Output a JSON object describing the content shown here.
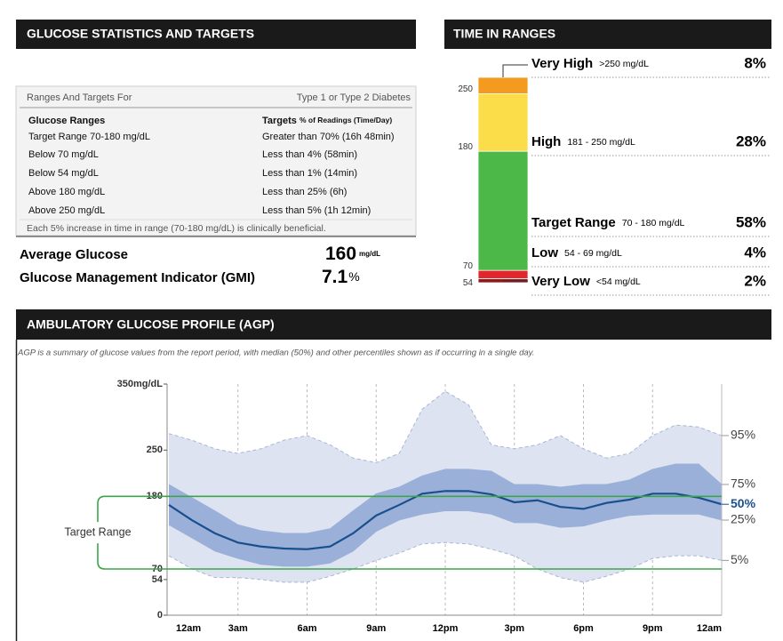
{
  "stats": {
    "title": "GLUCOSE STATISTICS AND TARGETS",
    "table": {
      "header": [
        "Ranges And Targets For",
        "Type 1 or Type 2 Diabetes"
      ],
      "columns": [
        "Glucose Ranges",
        "Targets",
        "% of Readings (Time/Day)"
      ],
      "rows": [
        [
          "Target Range 70-180 mg/dL",
          "Greater than 70% (16h 48min)"
        ],
        [
          "Below 70 mg/dL",
          "Less than 4% (58min)"
        ],
        [
          "Below 54 mg/dL",
          "Less than 1% (14min)"
        ],
        [
          "Above 180 mg/dL",
          "Less than 25% (6h)"
        ],
        [
          "Above 250 mg/dL",
          "Less than 5% (1h 12min)"
        ]
      ],
      "note": "Each 5% increase in time in range (70-180 mg/dL) is clinically beneficial."
    },
    "metrics": [
      {
        "label": "Average Glucose",
        "value": 160,
        "unit": "mg/dL"
      },
      {
        "label": "Glucose Management Indicator (GMI)",
        "value": 7.1,
        "unit": "%"
      }
    ]
  },
  "agp": {
    "title": "AMBULATORY GLUCOSE PROFILE (AGP)",
    "subtitle": "AGP is a summary of glucose values from the report period, with median (50%) and other percentiles shown as if occurring in a single day."
  },
  "chart_data": [
    {
      "type": "bar",
      "stacked": true,
      "title": "TIME IN RANGES",
      "series": [
        {
          "name": "Very High",
          "range": ">250 mg/dL",
          "values": [
            8
          ],
          "value_labels": [
            "8%"
          ],
          "color": "#f39a1f"
        },
        {
          "name": "High",
          "range": "181 - 250 mg/dL",
          "values": [
            28
          ],
          "value_labels": [
            "28%"
          ],
          "color": "#fbdd4a"
        },
        {
          "name": "Target Range",
          "range": "70 - 180 mg/dL",
          "values": [
            58
          ],
          "value_labels": [
            "58%"
          ],
          "color": "#4cb848"
        },
        {
          "name": "Low",
          "range": "54 - 69 mg/dL",
          "values": [
            4
          ],
          "value_labels": [
            "4%"
          ],
          "color": "#e3262b"
        },
        {
          "name": "Very Low",
          "range": "<54 mg/dL",
          "values": [
            2
          ],
          "value_labels": [
            "2%"
          ],
          "color": "#8b1c1c"
        }
      ],
      "boundary_labels": [
        250,
        180,
        70,
        54
      ]
    },
    {
      "type": "band",
      "x": [
        0,
        1,
        2,
        3,
        4,
        5,
        6,
        7,
        8,
        9,
        10,
        11,
        12,
        13,
        14,
        15,
        16,
        17,
        18,
        19,
        20,
        21,
        22,
        23,
        24
      ],
      "xlim": [
        0,
        24
      ],
      "xticks": [
        {
          "value": 0,
          "label": "12am"
        },
        {
          "value": 3,
          "label": "3am"
        },
        {
          "value": 6,
          "label": "6am"
        },
        {
          "value": 9,
          "label": "9am"
        },
        {
          "value": 12,
          "label": "12pm"
        },
        {
          "value": 15,
          "label": "3pm"
        },
        {
          "value": 18,
          "label": "6pm"
        },
        {
          "value": 21,
          "label": "9pm"
        },
        {
          "value": 24,
          "label": "12am"
        }
      ],
      "ylim": [
        0,
        350
      ],
      "yticks": [
        0,
        54,
        70,
        180,
        250,
        {
          "value": 350,
          "label": "350mg/dL"
        }
      ],
      "target_range": [
        70,
        180
      ],
      "target_label": "Target Range",
      "target_color": "#3aa64a",
      "series": [
        {
          "name": "95%",
          "color": "#dde3f0",
          "values": [
            275,
            265,
            252,
            245,
            252,
            265,
            272,
            258,
            238,
            231,
            245,
            312,
            339,
            319,
            258,
            252,
            258,
            272,
            252,
            238,
            245,
            272,
            288,
            285,
            272
          ]
        },
        {
          "name": "75%",
          "color": "#9bb0d8",
          "values": [
            198,
            178,
            158,
            137,
            128,
            124,
            124,
            131,
            158,
            184,
            194,
            211,
            221,
            221,
            218,
            198,
            198,
            194,
            198,
            198,
            205,
            221,
            229,
            229,
            198
          ]
        },
        {
          "name": "50%",
          "color": "#1a4f8f",
          "values": [
            167,
            144,
            124,
            110,
            104,
            101,
            100,
            104,
            124,
            151,
            167,
            184,
            188,
            188,
            183,
            171,
            174,
            164,
            161,
            170,
            175,
            184,
            184,
            178,
            168
          ]
        },
        {
          "name": "25%",
          "color": "#9bb0d8",
          "values": [
            137,
            117,
            97,
            86,
            77,
            74,
            74,
            79,
            97,
            127,
            144,
            153,
            158,
            158,
            153,
            140,
            140,
            133,
            135,
            144,
            151,
            153,
            153,
            153,
            144
          ]
        },
        {
          "name": "5%",
          "color": "#dde3f0",
          "values": [
            90,
            70,
            57,
            57,
            54,
            50,
            50,
            59,
            70,
            83,
            94,
            108,
            110,
            108,
            100,
            90,
            70,
            57,
            50,
            59,
            70,
            86,
            90,
            90,
            83
          ]
        }
      ]
    }
  ]
}
